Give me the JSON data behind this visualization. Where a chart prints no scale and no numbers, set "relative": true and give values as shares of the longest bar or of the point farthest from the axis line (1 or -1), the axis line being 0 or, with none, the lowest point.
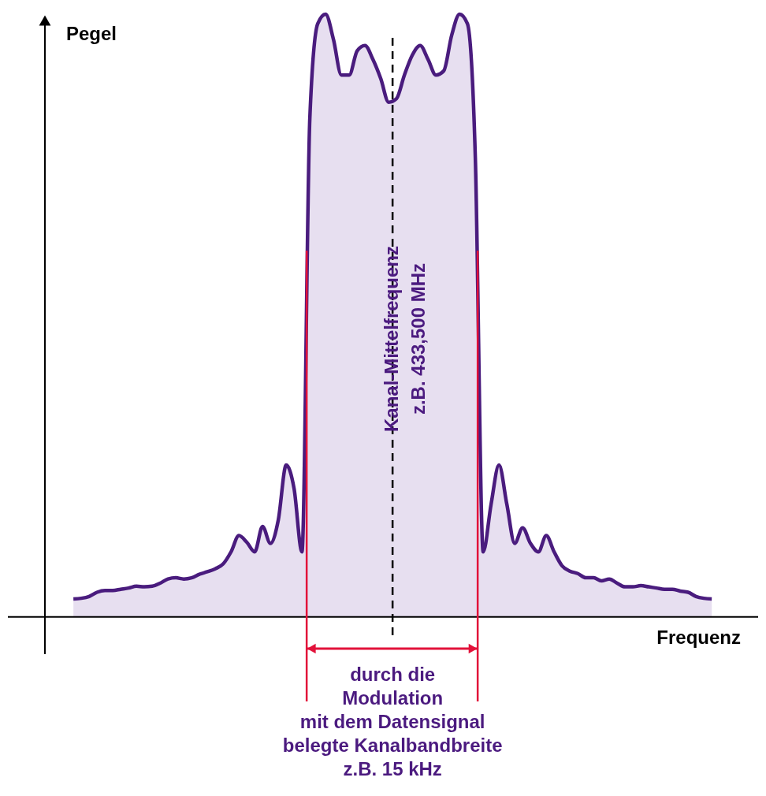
{
  "chart_data": {
    "type": "area",
    "relative": true,
    "xlabel": "Frequenz",
    "ylabel": "Pegel",
    "categories": [
      null,
      null,
      null,
      null,
      null,
      null,
      null,
      null,
      null,
      null,
      null,
      null,
      null,
      null,
      null,
      null,
      null,
      null,
      null,
      null,
      null,
      null,
      null,
      null,
      null,
      null,
      null,
      null,
      null,
      null,
      null,
      null,
      null,
      null,
      null,
      null,
      null,
      null,
      null,
      null,
      null,
      null,
      null,
      null,
      null,
      null,
      null,
      null,
      null,
      null,
      null,
      null,
      null,
      null,
      null,
      null,
      null,
      null,
      null,
      null,
      null,
      null,
      null,
      null,
      null,
      null,
      null,
      null,
      null,
      null,
      null,
      null,
      null,
      null,
      null,
      null,
      null,
      null,
      null,
      null,
      null,
      null
    ],
    "series": [
      {
        "color": "#4a1c7e",
        "values": [
          0.03,
          0.031,
          0.034,
          0.041,
          0.044,
          0.044,
          0.046,
          0.048,
          0.051,
          0.05,
          0.051,
          0.056,
          0.063,
          0.065,
          0.063,
          0.065,
          0.071,
          0.075,
          0.08,
          0.088,
          0.108,
          0.135,
          0.124,
          0.108,
          0.15,
          0.122,
          0.161,
          0.252,
          0.213,
          0.108,
          0.827,
          0.984,
          1.0,
          0.958,
          0.899,
          0.899,
          0.939,
          0.948,
          0.925,
          0.893,
          0.854,
          0.86,
          0.899,
          0.932,
          0.948,
          0.925,
          0.899,
          0.906,
          0.965,
          1.0,
          0.984,
          0.762,
          0.108,
          0.187,
          0.252,
          0.187,
          0.122,
          0.148,
          0.122,
          0.108,
          0.135,
          0.108,
          0.085,
          0.076,
          0.072,
          0.065,
          0.065,
          0.06,
          0.063,
          0.056,
          0.05,
          0.05,
          0.052,
          0.05,
          0.048,
          0.046,
          0.046,
          0.043,
          0.041,
          0.034,
          0.031,
          0.03
        ]
      }
    ],
    "annotations": [
      "Kanal-Mittelfrequenz\nz.B. 433,500 MHz",
      "durch die\nModulation\nmit dem Datensignal\nbelegte Kanalbandbreite\nz.B.  15 kHz"
    ],
    "grid": false
  }
}
